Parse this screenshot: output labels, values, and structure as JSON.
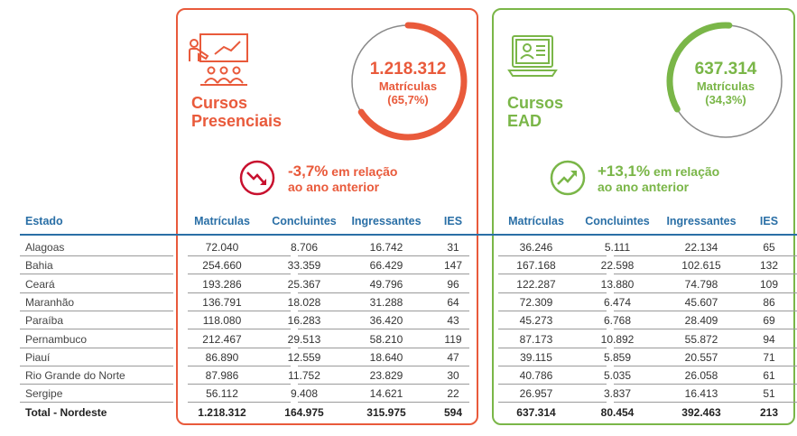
{
  "presencial": {
    "title_line1": "Cursos",
    "title_line2": "Presenciais",
    "total": "1.218.312",
    "label": "Matrículas",
    "share": "(65,7%)",
    "change_pct": "-3,7%",
    "change_text1": " em relação",
    "change_text2": "ao ano anterior",
    "color": "#e95a3b",
    "share_fraction": 0.657
  },
  "ead": {
    "title_line1": "Cursos",
    "title_line2": "EAD",
    "total": "637.314",
    "label": "Matrículas",
    "share": "(34,3%)",
    "change_pct": "+13,1%",
    "change_text1": " em relação",
    "change_text2": "ao ano anterior",
    "color": "#7ab648",
    "share_fraction": 0.343
  },
  "table": {
    "state_header": "Estado",
    "columns": [
      "Matrículas",
      "Concluintes",
      "Ingressantes",
      "IES"
    ],
    "rows": [
      {
        "state": "Alagoas",
        "pres": [
          "72.040",
          "8.706",
          "16.742",
          "31"
        ],
        "ead": [
          "36.246",
          "5.111",
          "22.134",
          "65"
        ]
      },
      {
        "state": "Bahia",
        "pres": [
          "254.660",
          "33.359",
          "66.429",
          "147"
        ],
        "ead": [
          "167.168",
          "22.598",
          "102.615",
          "132"
        ]
      },
      {
        "state": "Ceará",
        "pres": [
          "193.286",
          "25.367",
          "49.796",
          "96"
        ],
        "ead": [
          "122.287",
          "13.880",
          "74.798",
          "109"
        ]
      },
      {
        "state": "Maranhão",
        "pres": [
          "136.791",
          "18.028",
          "31.288",
          "64"
        ],
        "ead": [
          "72.309",
          "6.474",
          "45.607",
          "86"
        ]
      },
      {
        "state": "Paraíba",
        "pres": [
          "118.080",
          "16.283",
          "36.420",
          "43"
        ],
        "ead": [
          "45.273",
          "6.768",
          "28.409",
          "69"
        ]
      },
      {
        "state": "Pernambuco",
        "pres": [
          "212.467",
          "29.513",
          "58.210",
          "119"
        ],
        "ead": [
          "87.173",
          "10.892",
          "55.872",
          "94"
        ]
      },
      {
        "state": "Piauí",
        "pres": [
          "86.890",
          "12.559",
          "18.640",
          "47"
        ],
        "ead": [
          "39.115",
          "5.859",
          "20.557",
          "71"
        ]
      },
      {
        "state": "Rio Grande do Norte",
        "pres": [
          "87.986",
          "11.752",
          "23.829",
          "30"
        ],
        "ead": [
          "40.786",
          "5.035",
          "26.058",
          "61"
        ]
      },
      {
        "state": "Sergipe",
        "pres": [
          "56.112",
          "9.408",
          "14.621",
          "22"
        ],
        "ead": [
          "26.957",
          "3.837",
          "16.413",
          "51"
        ]
      }
    ],
    "total": {
      "state": "Total - Nordeste",
      "pres": [
        "1.218.312",
        "164.975",
        "315.975",
        "594"
      ],
      "ead": [
        "637.314",
        "80.454",
        "392.463",
        "213"
      ]
    }
  }
}
